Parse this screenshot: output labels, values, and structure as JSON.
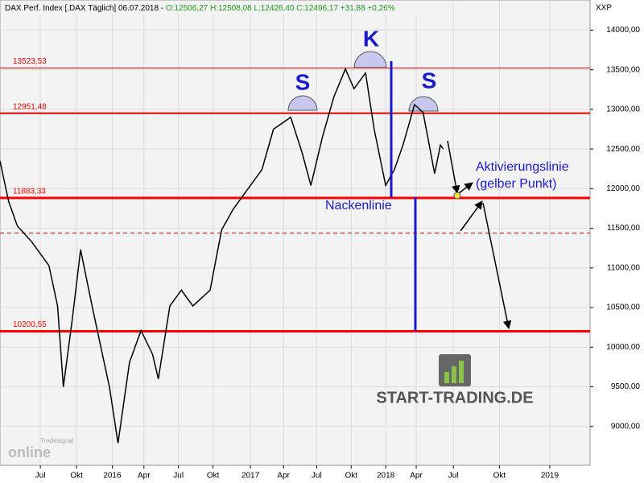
{
  "chart_data": {
    "type": "line",
    "title": "DAX Perf. Index [.DAX  Täglich] 06.07.2018 -",
    "subtitle": "O:12506,27 H:12508,08 L:12426,40 C:12496,17 +31,88 +0,26%",
    "y_axis_label": "XXP",
    "series": [
      {
        "name": "DAX",
        "color": "#000000",
        "x": [
          0,
          3,
          6,
          11,
          17,
          20,
          22,
          25,
          28,
          32,
          35,
          38,
          41,
          45,
          49,
          53,
          55,
          59,
          63,
          67,
          73,
          77,
          81,
          85,
          91,
          95,
          101,
          105,
          108,
          112,
          116,
          120,
          123,
          127,
          130,
          134,
          137,
          140,
          144,
          147,
          151,
          153,
          154
        ],
        "values": [
          12350,
          11840,
          11530,
          11330,
          11030,
          10520,
          9500,
          10320,
          11230,
          10520,
          10010,
          9500,
          8790,
          9810,
          10210,
          9910,
          9600,
          10520,
          10720,
          10520,
          10720,
          11480,
          11740,
          11940,
          12240,
          12750,
          12900,
          12450,
          12040,
          12650,
          13160,
          13510,
          13260,
          13460,
          12750,
          12040,
          12240,
          12550,
          13060,
          12960,
          12190,
          12550,
          12500
        ]
      }
    ],
    "ylim": [
      8510,
      14380
    ],
    "yticks": [
      {
        "value": 9000,
        "label": "9000,00"
      },
      {
        "value": 9500,
        "label": "9500,00"
      },
      {
        "value": 10000,
        "label": "10000,00"
      },
      {
        "value": 10500,
        "label": "10500,00"
      },
      {
        "value": 11000,
        "label": "11000,00"
      },
      {
        "value": 11500,
        "label": "11500,00"
      },
      {
        "value": 12000,
        "label": "12000,00"
      },
      {
        "value": 12500,
        "label": "12500,00"
      },
      {
        "value": 13000,
        "label": "13000,00"
      },
      {
        "value": 13500,
        "label": "13500,00"
      },
      {
        "value": 14000,
        "label": "14000,00"
      }
    ],
    "xlim": [
      0,
      205
    ],
    "xticks": [
      {
        "value": 14,
        "label": "Jul"
      },
      {
        "value": 26.6,
        "label": "Okt"
      },
      {
        "value": 39,
        "label": "2016"
      },
      {
        "value": 50,
        "label": "Apr"
      },
      {
        "value": 62,
        "label": "Jul"
      },
      {
        "value": 74,
        "label": "Okt"
      },
      {
        "value": 87,
        "label": "2017"
      },
      {
        "value": 98.5,
        "label": "Apr"
      },
      {
        "value": 110,
        "label": "Jul"
      },
      {
        "value": 122,
        "label": "Okt"
      },
      {
        "value": 134,
        "label": "2018"
      },
      {
        "value": 144.6,
        "label": "Apr"
      },
      {
        "value": 157.5,
        "label": "Jul"
      },
      {
        "value": 173.5,
        "label": "Okt"
      },
      {
        "value": 191,
        "label": "2019"
      }
    ],
    "grid": true,
    "levels": [
      {
        "value": 13523.53,
        "label": "13523,53",
        "color": "#e00000",
        "line_width": 1
      },
      {
        "value": 12951.48,
        "label": "12951,48",
        "color": "#e00000",
        "line_width": 2
      },
      {
        "value": 11883.33,
        "label": "11883,33",
        "color": "#ff0000",
        "line_width": 3
      },
      {
        "value": 11440,
        "color": "#e00000",
        "line_width": 1,
        "dashed": true
      },
      {
        "value": 10200.55,
        "label": "10200,55",
        "color": "#ff0000",
        "line_width": 3
      }
    ],
    "annotations": [
      "S",
      "K",
      "S",
      "Nackenlinie",
      "Aktivierungslinie",
      "(gelber Punkt)"
    ],
    "watermark": "START-TRADING.DE",
    "logo": [
      "Tradesignal",
      "online"
    ]
  }
}
